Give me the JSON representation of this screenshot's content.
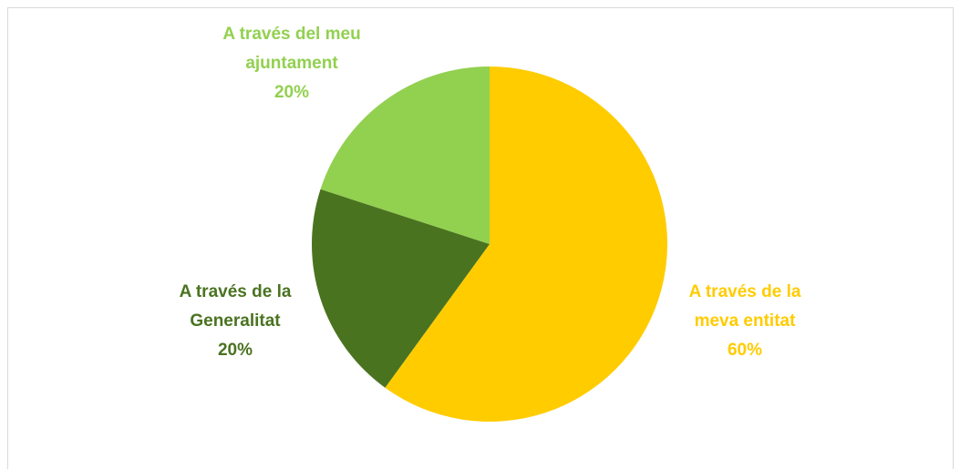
{
  "chart_data": {
    "type": "pie",
    "categories": [
      "A través de la meva entitat",
      "A través de la Generalitat",
      "A través del meu ajuntament"
    ],
    "values": [
      60,
      20,
      20
    ],
    "value_labels": [
      "60%",
      "20%",
      "20%"
    ],
    "colors": [
      "#FFCC00",
      "#4A7320",
      "#92D050"
    ]
  }
}
